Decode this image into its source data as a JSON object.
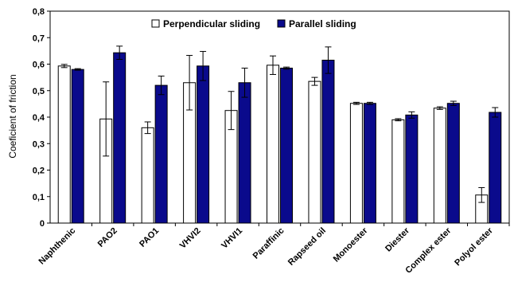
{
  "chart_data": {
    "type": "bar",
    "title": "",
    "xlabel": "",
    "ylabel": "Coeficient of friction",
    "ylim": [
      0,
      0.8
    ],
    "yticks": [
      "0",
      "0,1",
      "0,2",
      "0,3",
      "0,4",
      "0,5",
      "0,6",
      "0,7",
      "0,8"
    ],
    "grid": false,
    "legend_position": "top-center",
    "categories": [
      "Naphthenic",
      "PAO2",
      "PAO1",
      "VHVI2",
      "VHVI1",
      "Paraffinic",
      "Rapseed oil",
      "Monoester",
      "Diester",
      "Complex ester",
      "Polyol ester"
    ],
    "series": [
      {
        "name": "Perpendicular sliding",
        "color": "#ffffff",
        "values": [
          0.593,
          0.393,
          0.36,
          0.53,
          0.425,
          0.596,
          0.535,
          0.452,
          0.39,
          0.434,
          0.106
        ],
        "errors": [
          0.006,
          0.14,
          0.022,
          0.103,
          0.072,
          0.035,
          0.015,
          0.004,
          0.004,
          0.005,
          0.028
        ]
      },
      {
        "name": "Parallel sliding",
        "color": "#0a0a8c",
        "values": [
          0.58,
          0.643,
          0.52,
          0.593,
          0.53,
          0.585,
          0.615,
          0.452,
          0.408,
          0.452,
          0.418
        ],
        "errors": [
          0.003,
          0.025,
          0.035,
          0.055,
          0.055,
          0.004,
          0.05,
          0.004,
          0.012,
          0.008,
          0.018
        ]
      }
    ]
  }
}
